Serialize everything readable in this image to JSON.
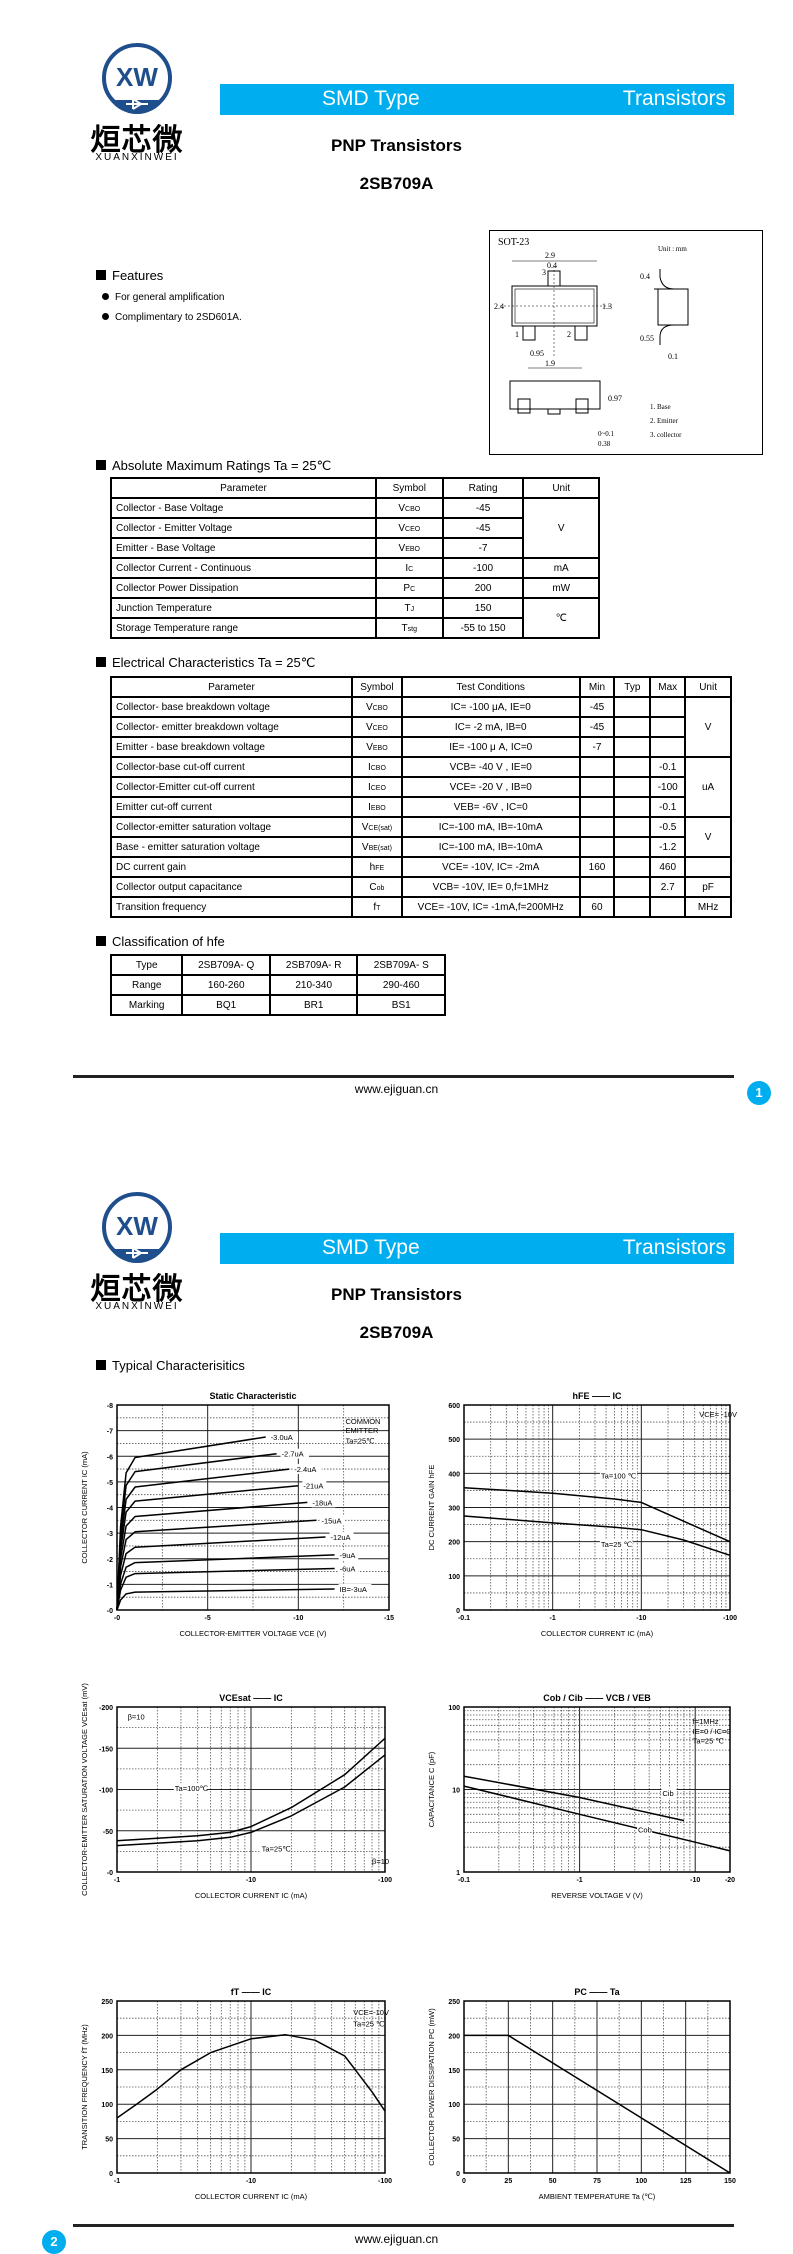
{
  "logo": {
    "symbol": "XW",
    "chinese": "烜芯微",
    "pinyin": "XUANXINWEI",
    "color": "#1f4e8c"
  },
  "header": {
    "category": "SMD Type",
    "family": "Transistors",
    "accent": "#00aeef"
  },
  "title": {
    "type": "PNP  Transistors",
    "part": "2SB709A"
  },
  "features": {
    "heading": "Features",
    "items": [
      "For general amplification",
      "Complimentary to 2SD601A."
    ]
  },
  "package": {
    "name": "SOT-23",
    "unit": "Unit : mm",
    "dims": [
      "2.9",
      "0.4",
      "1.3",
      "2.4",
      "0.95",
      "1.9",
      "0.4",
      "0.55",
      "0.1",
      "0.97",
      "0~0.1",
      "0.38"
    ],
    "pins": [
      "1",
      "2",
      "3"
    ],
    "legend": [
      "1. Base",
      "2. Emitter",
      "3. collector"
    ]
  },
  "abs_max": {
    "heading": "Absolute Maximum Ratings Ta = 25℃",
    "headers": [
      "Parameter",
      "Symbol",
      "Rating",
      "Unit"
    ],
    "rows": [
      [
        "Collector - Base Voltage",
        [
          "V",
          "CBO"
        ],
        "-45",
        "V"
      ],
      [
        "Collector - Emitter Voltage",
        [
          "V",
          "CEO"
        ],
        "-45",
        "V"
      ],
      [
        "Emitter - Base Voltage",
        [
          "V",
          "EBO"
        ],
        "-7",
        "V"
      ],
      [
        "Collector Current  - Continuous",
        [
          "I",
          "C"
        ],
        "-100",
        "mA"
      ],
      [
        "Collector Power Dissipation",
        [
          "P",
          "C"
        ],
        "200",
        "mW"
      ],
      [
        "Junction Temperature",
        [
          "T",
          "J"
        ],
        "150",
        "℃"
      ],
      [
        "Storage Temperature range",
        [
          "T",
          "stg"
        ],
        "-55 to 150",
        "℃"
      ]
    ]
  },
  "electrical": {
    "heading": "Electrical Characteristics Ta = 25℃",
    "headers": [
      "Parameter",
      "Symbol",
      "Test Conditions",
      "Min",
      "Typ",
      "Max",
      "Unit"
    ],
    "rows": [
      [
        "Collector- base breakdown voltage",
        [
          "V",
          "CBO"
        ],
        "IC= -100 μA,  IE=0",
        "-45",
        "",
        "",
        "V"
      ],
      [
        "Collector- emitter breakdown voltage",
        [
          "V",
          "CEO"
        ],
        "IC= -2 mA,  IB=0",
        "-45",
        "",
        "",
        "V"
      ],
      [
        "Emitter - base breakdown voltage",
        [
          "V",
          "EBO"
        ],
        "IE= -100 μ A,  IC=0",
        "-7",
        "",
        "",
        "V"
      ],
      [
        "Collector-base cut-off current",
        [
          "I",
          "CBO"
        ],
        "VCB= -40 V , IE=0",
        "",
        "",
        "-0.1",
        "uA"
      ],
      [
        "Collector-Emitter cut-off current",
        [
          "I",
          "CEO"
        ],
        "VCE= -20 V , IB=0",
        "",
        "",
        "-100",
        "uA"
      ],
      [
        "Emitter cut-off current",
        [
          "I",
          "EBO"
        ],
        "VEB= -6V , IC=0",
        "",
        "",
        "-0.1",
        "uA"
      ],
      [
        "Collector-emitter saturation voltage",
        [
          "V",
          "CE(sat)"
        ],
        "IC=-100 mA, IB=-10mA",
        "",
        "",
        "-0.5",
        "V"
      ],
      [
        "Base - emitter saturation voltage",
        [
          "V",
          "BE(sat)"
        ],
        "IC=-100 mA, IB=-10mA",
        "",
        "",
        "-1.2",
        "V"
      ],
      [
        "DC current gain",
        [
          "h",
          "FE"
        ],
        "VCE= -10V, IC= -2mA",
        "160",
        "",
        "460",
        ""
      ],
      [
        "Collector output  capacitance",
        [
          "C",
          "ob"
        ],
        "VCB= -10V, IE= 0,f=1MHz",
        "",
        "",
        "2.7",
        "pF"
      ],
      [
        "Transition frequency",
        [
          "f",
          "T"
        ],
        "VCE= -10V, IC= -1mA,f=200MHz",
        "60",
        "",
        "",
        "MHz"
      ]
    ]
  },
  "classification": {
    "heading": "Classification of hfe",
    "rows": [
      [
        "Type",
        "2SB709A- Q",
        "2SB709A- R",
        "2SB709A- S"
      ],
      [
        "Range",
        "160-260",
        "210-340",
        "290-460"
      ],
      [
        "Marking",
        "BQ1",
        "BR1",
        "BS1"
      ]
    ]
  },
  "footer": {
    "website": "www.ejiguan.cn",
    "page1": "1",
    "page2": "2"
  },
  "typical": {
    "heading": "Typical  Characterisitics"
  },
  "chart_data": [
    {
      "type": "line",
      "title": "Static Characteristic",
      "xlabel": "COLLECTOR-EMITTER VOLTAGE   VCE   (V)",
      "ylabel": "COLLECTOR CURRENT   IC   (mA)",
      "xscale": "linear",
      "yscale": "linear",
      "xlim": [
        0,
        -15
      ],
      "ylim": [
        0,
        -8
      ],
      "xticks": [
        0,
        -5,
        -10,
        -15
      ],
      "xtick_labels": [
        "-0",
        "-5",
        "-10",
        "-15"
      ],
      "yticks": [
        0,
        -1,
        -2,
        -3,
        -4,
        -5,
        -6,
        -7,
        -8
      ],
      "ytick_labels": [
        "-0",
        "-1",
        "-2",
        "-3",
        "-4",
        "-5",
        "-6",
        "-7",
        "-8"
      ],
      "grid": true,
      "series": [
        {
          "name": "IB=-3uA",
          "points": [
            [
              0,
              0
            ],
            [
              -0.2,
              -0.39
            ],
            [
              -0.5,
              -0.63
            ],
            [
              -1,
              -0.7
            ],
            [
              -12,
              -0.82
            ]
          ]
        },
        {
          "name": "-6uA",
          "points": [
            [
              0,
              0
            ],
            [
              -0.2,
              -0.78
            ],
            [
              -0.5,
              -1.28
            ],
            [
              -1,
              -1.42
            ],
            [
              -12,
              -1.62
            ]
          ]
        },
        {
          "name": "-9uA",
          "points": [
            [
              0,
              0
            ],
            [
              -0.2,
              -1.02
            ],
            [
              -0.5,
              -1.67
            ],
            [
              -1,
              -1.85
            ],
            [
              -12,
              -2.15
            ]
          ]
        },
        {
          "name": "-12uA",
          "points": [
            [
              0,
              0
            ],
            [
              -0.2,
              -1.35
            ],
            [
              -0.5,
              -2.2
            ],
            [
              -1,
              -2.45
            ],
            [
              -11.5,
              -2.85
            ]
          ]
        },
        {
          "name": "-15uA",
          "points": [
            [
              0,
              0
            ],
            [
              -0.2,
              -1.68
            ],
            [
              -0.5,
              -2.75
            ],
            [
              -1,
              -3.05
            ],
            [
              -11,
              -3.5
            ]
          ]
        },
        {
          "name": "-18uA",
          "points": [
            [
              0,
              0
            ],
            [
              -0.2,
              -2.0
            ],
            [
              -0.5,
              -3.28
            ],
            [
              -1,
              -3.65
            ],
            [
              -10.5,
              -4.2
            ]
          ]
        },
        {
          "name": "-21uA",
          "points": [
            [
              0,
              0
            ],
            [
              -0.2,
              -2.34
            ],
            [
              -0.5,
              -3.82
            ],
            [
              -1,
              -4.25
            ],
            [
              -10,
              -4.85
            ]
          ]
        },
        {
          "name": "-2.4uA",
          "points": [
            [
              0,
              0
            ],
            [
              -0.2,
              -2.64
            ],
            [
              -0.5,
              -4.32
            ],
            [
              -1,
              -4.8
            ],
            [
              -9.5,
              -5.5
            ]
          ]
        },
        {
          "name": "-2.7uA",
          "points": [
            [
              0,
              0
            ],
            [
              -0.2,
              -2.97
            ],
            [
              -0.5,
              -4.86
            ],
            [
              -1,
              -5.4
            ],
            [
              -8.8,
              -6.1
            ]
          ]
        },
        {
          "name": "-3.0uA",
          "points": [
            [
              0,
              0
            ],
            [
              -0.2,
              -3.27
            ],
            [
              -0.5,
              -5.35
            ],
            [
              -1,
              -5.95
            ],
            [
              -8.2,
              -6.75
            ]
          ]
        }
      ],
      "annotations": [
        {
          "text": "COMMON",
          "x": -12.6,
          "y": -7.25
        },
        {
          "text": "EMITTER",
          "x": -12.6,
          "y": -6.9
        },
        {
          "text": "Ta=25℃",
          "x": -12.6,
          "y": -6.5
        }
      ]
    },
    {
      "type": "line",
      "title": "hFE  ——  IC",
      "xlabel": "COLLECTOR CURRENT   IC   (mA)",
      "ylabel": "DC CURRENT GAIN   hFE",
      "xscale": "log",
      "yscale": "linear",
      "xlim": [
        -0.1,
        -100
      ],
      "ylim": [
        0,
        600
      ],
      "xticks": [
        -0.1,
        -1,
        -10,
        -100
      ],
      "xtick_labels": [
        "-0.1",
        "-1",
        "-10",
        "-100"
      ],
      "yticks": [
        0,
        100,
        200,
        300,
        400,
        500,
        600
      ],
      "ytick_labels": [
        "0",
        "100",
        "200",
        "300",
        "400",
        "500",
        "600"
      ],
      "grid": true,
      "series": [
        {
          "name": "Ta=100 ℃",
          "label_at": [
            -3.5,
            385
          ],
          "points": [
            [
              -0.1,
              358
            ],
            [
              -1,
              342
            ],
            [
              -5,
              325
            ],
            [
              -10,
              315
            ],
            [
              -30,
              260
            ],
            [
              -100,
              200
            ]
          ]
        },
        {
          "name": "Ta=25 ℃",
          "label_at": [
            -3.5,
            185
          ],
          "points": [
            [
              -0.1,
              275
            ],
            [
              -1,
              255
            ],
            [
              -5,
              242
            ],
            [
              -10,
              235
            ],
            [
              -30,
              205
            ],
            [
              -100,
              160
            ]
          ]
        }
      ],
      "annotations": [
        {
          "text": "VCE= -10V",
          "x": -45,
          "y": 565
        }
      ]
    },
    {
      "type": "line",
      "title": "VCEsat  ——  IC",
      "xlabel": "COLLECTOR CURRENT   IC   (mA)",
      "ylabel": "COLLECTOR-EMITTER SATURATION VOLTAGE   VCEsat   (mV)",
      "xscale": "log",
      "yscale": "linear",
      "xlim": [
        -1,
        -100
      ],
      "ylim": [
        0,
        -200
      ],
      "xticks": [
        -1,
        -10,
        -100
      ],
      "xtick_labels": [
        "-1",
        "-10",
        "-100"
      ],
      "yticks": [
        0,
        -50,
        -100,
        -150,
        -200
      ],
      "ytick_labels": [
        "-0",
        "-50",
        "-100",
        "-150",
        "-200"
      ],
      "grid": true,
      "series": [
        {
          "name": "Ta=100℃",
          "label_at": [
            -2.7,
            -98
          ],
          "points": [
            [
              -1,
              -38
            ],
            [
              -4,
              -44
            ],
            [
              -7,
              -48
            ],
            [
              -10,
              -55
            ],
            [
              -20,
              -78
            ],
            [
              -50,
              -118
            ],
            [
              -100,
              -162
            ]
          ]
        },
        {
          "name": "Ta=25℃",
          "label_at": [
            -12,
            -25
          ],
          "points": [
            [
              -1,
              -32
            ],
            [
              -4,
              -38
            ],
            [
              -7,
              -42
            ],
            [
              -10,
              -48
            ],
            [
              -20,
              -68
            ],
            [
              -50,
              -103
            ],
            [
              -100,
              -142
            ]
          ]
        }
      ],
      "annotations": [
        {
          "text": "β=10",
          "x": -1.2,
          "y": -185
        },
        {
          "text": "β=10",
          "x": -80,
          "y": -10
        }
      ]
    },
    {
      "type": "line",
      "title": "Cob / Cib  ——  VCB / VEB",
      "xlabel": "REVERSE VOLTAGE   V   (V)",
      "ylabel": "CAPACITANCE   C   (pF)",
      "xscale": "log",
      "yscale": "log",
      "xlim": [
        -0.1,
        -20
      ],
      "ylim": [
        1,
        100
      ],
      "xticks": [
        -0.1,
        -1,
        -10,
        -20
      ],
      "xtick_labels": [
        "-0.1",
        "-1",
        "-10",
        "-20"
      ],
      "yticks": [
        1,
        10,
        100
      ],
      "ytick_labels": [
        "1",
        "10",
        "100"
      ],
      "grid": true,
      "series": [
        {
          "name": "Cib",
          "label_at": [
            -5.2,
            8.3
          ],
          "points": [
            [
              -0.1,
              14.5
            ],
            [
              -1,
              8
            ],
            [
              -8,
              4.2
            ]
          ]
        },
        {
          "name": "Cob",
          "label_at": [
            -3.2,
            3.0
          ],
          "points": [
            [
              -0.1,
              11
            ],
            [
              -1,
              5
            ],
            [
              -10,
              2.3
            ],
            [
              -20,
              1.8
            ]
          ]
        }
      ],
      "annotations": [
        {
          "text": "f=1MHz",
          "x": -9.5,
          "y": 62
        },
        {
          "text": "IE=0 / IC=0",
          "x": -9.5,
          "y": 47
        },
        {
          "text": "Ta=25 ℃",
          "x": -9.5,
          "y": 36
        }
      ]
    },
    {
      "type": "line",
      "title": "fT  ——  IC",
      "xlabel": "COLLECTOR CURRENT   IC   (mA)",
      "ylabel": "TRANSITION FREQUENCY   fT   (MHz)",
      "xscale": "log",
      "yscale": "linear",
      "xlim": [
        -1,
        -100
      ],
      "ylim": [
        0,
        250
      ],
      "xticks": [
        -1,
        -10,
        -100
      ],
      "xtick_labels": [
        "-1",
        "-10",
        "-100"
      ],
      "yticks": [
        0,
        50,
        100,
        150,
        200,
        250
      ],
      "ytick_labels": [
        "0",
        "50",
        "100",
        "150",
        "200",
        "250"
      ],
      "grid": true,
      "series": [
        {
          "points": [
            [
              -1,
              80
            ],
            [
              -1.4,
              100
            ],
            [
              -2,
              122
            ],
            [
              -3,
              150
            ],
            [
              -5,
              175
            ],
            [
              -10,
              195
            ],
            [
              -18,
              201
            ],
            [
              -30,
              193
            ],
            [
              -50,
              170
            ],
            [
              -60,
              150
            ],
            [
              -80,
              118
            ],
            [
              -100,
              90
            ]
          ]
        }
      ],
      "annotations": [
        {
          "text": "VCE=-10V",
          "x": -58,
          "y": 230
        },
        {
          "text": "Ta=25 ℃",
          "x": -58,
          "y": 213
        }
      ]
    },
    {
      "type": "line",
      "title": "PC  ——  Ta",
      "xlabel": "AMBIENT TEMPERATURE   Ta   (℃)",
      "ylabel": "COLLECTOR POWER DISSIPATION   PC   (mW)",
      "xscale": "linear",
      "yscale": "linear",
      "xlim": [
        0,
        150
      ],
      "ylim": [
        0,
        250
      ],
      "xticks": [
        0,
        25,
        50,
        75,
        100,
        125,
        150
      ],
      "xtick_labels": [
        "0",
        "25",
        "50",
        "75",
        "100",
        "125",
        "150"
      ],
      "yticks": [
        0,
        50,
        100,
        150,
        200,
        250
      ],
      "ytick_labels": [
        "0",
        "50",
        "100",
        "150",
        "200",
        "250"
      ],
      "grid": true,
      "series": [
        {
          "points": [
            [
              0,
              200
            ],
            [
              25,
              200
            ],
            [
              150,
              0
            ]
          ]
        }
      ],
      "annotations": []
    }
  ]
}
